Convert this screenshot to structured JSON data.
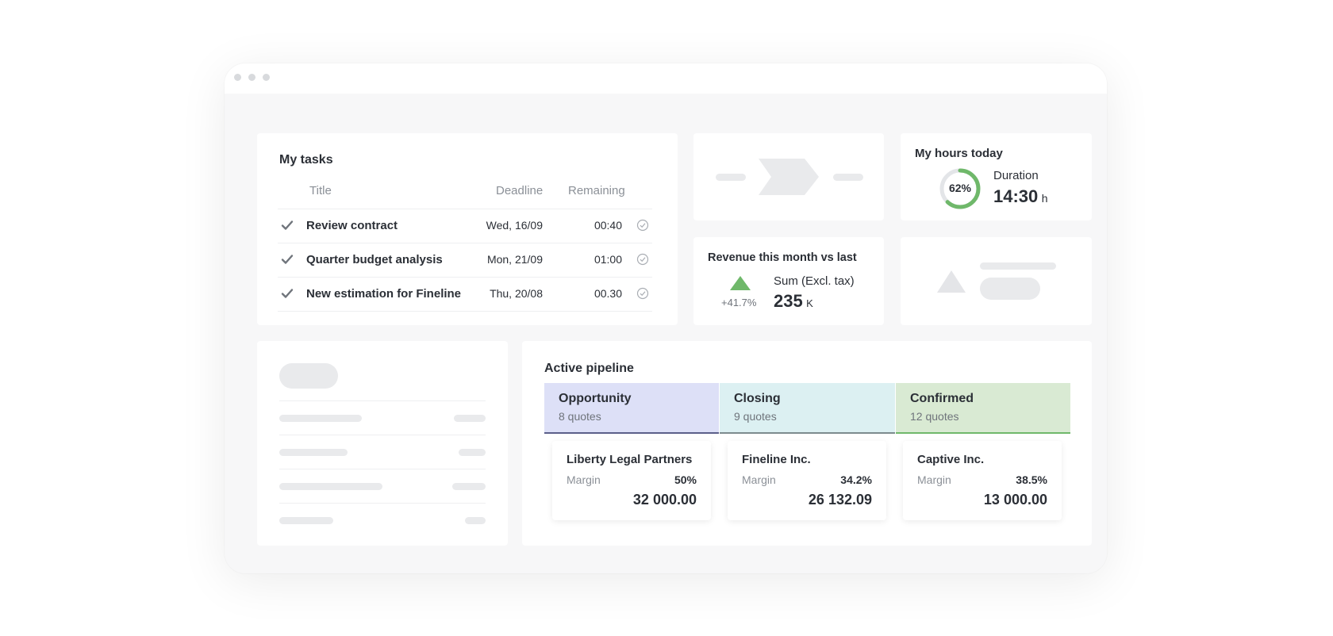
{
  "tasks": {
    "title": "My tasks",
    "columns": {
      "title": "Title",
      "deadline": "Deadline",
      "remaining": "Remaining"
    },
    "rows": [
      {
        "title": "Review contract",
        "deadline": "Wed, 16/09",
        "remaining": "00:40"
      },
      {
        "title": "Quarter budget analysis",
        "deadline": "Mon, 21/09",
        "remaining": "01:00"
      },
      {
        "title": "New estimation for Fineline",
        "deadline": "Thu, 20/08",
        "remaining": "00.30"
      }
    ]
  },
  "hours": {
    "title": "My hours today",
    "percent": 62,
    "percent_label": "62%",
    "duration_label": "Duration",
    "duration_value": "14:30",
    "duration_unit": "h"
  },
  "revenue": {
    "title": "Revenue this month vs last",
    "change": "+41.7%",
    "sum_label": "Sum (Excl. tax)",
    "sum_value": "235",
    "sum_unit": "K"
  },
  "pipeline": {
    "title": "Active pipeline",
    "stages": [
      {
        "name": "Opportunity",
        "count": "8 quotes",
        "color": "#dde0f7",
        "line": "#5b5f8a"
      },
      {
        "name": "Closing",
        "count": "9 quotes",
        "color": "#dcf0f2",
        "line": "#7d8b8e"
      },
      {
        "name": "Confirmed",
        "count": "12 quotes",
        "color": "#d9ead3",
        "line": "#6fb86a"
      }
    ],
    "deals": [
      {
        "company": "Liberty Legal Partners",
        "margin_label": "Margin",
        "margin": "50%",
        "amount": "32 000.00"
      },
      {
        "company": "Fineline Inc.",
        "margin_label": "Margin",
        "margin": "34.2%",
        "amount": "26 132.09"
      },
      {
        "company": "Captive Inc.",
        "margin_label": "Margin",
        "margin": "38.5%",
        "amount": "13 000.00"
      }
    ]
  },
  "colors": {
    "accent_green": "#6fb86a",
    "skeleton": "#e9eaec"
  }
}
